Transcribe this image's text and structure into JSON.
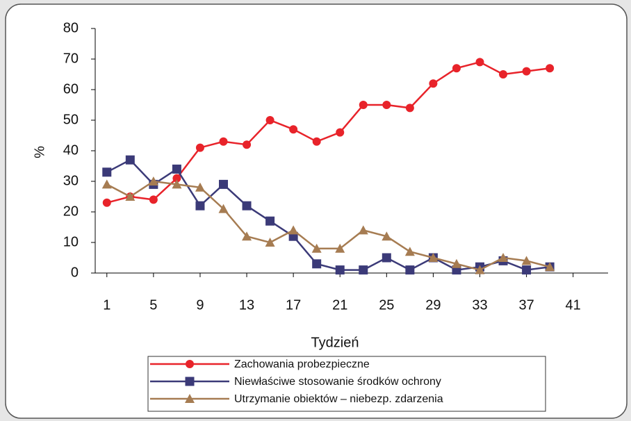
{
  "chart_data": {
    "type": "line",
    "x_label": "Tydzień",
    "y_label": "%",
    "x": [
      1,
      3,
      5,
      7,
      9,
      11,
      13,
      15,
      17,
      19,
      21,
      23,
      25,
      27,
      29,
      31,
      33,
      35,
      37,
      39
    ],
    "series": [
      {
        "name": "Zachowania probezpieczne",
        "color": "#e8232a",
        "marker": "circle",
        "values": [
          23,
          25,
          24,
          31,
          41,
          43,
          42,
          50,
          47,
          43,
          46,
          55,
          55,
          54,
          62,
          67,
          69,
          65,
          66,
          67
        ]
      },
      {
        "name": "Niewłaściwe stosowanie środków ochrony",
        "color": "#3b3a78",
        "marker": "square",
        "values": [
          33,
          37,
          29,
          34,
          22,
          29,
          22,
          17,
          12,
          3,
          1,
          1,
          5,
          1,
          5,
          1,
          2,
          4,
          1,
          2
        ]
      },
      {
        "name": "Utrzymanie obiektów – niebezp. zdarzenia",
        "color": "#a67c52",
        "marker": "triangle",
        "values": [
          29,
          25,
          30,
          29,
          28,
          21,
          12,
          10,
          14,
          8,
          8,
          14,
          12,
          7,
          5,
          3,
          1,
          5,
          4,
          2
        ]
      }
    ],
    "xlim": [
      0,
      44
    ],
    "xticks": [
      1,
      5,
      9,
      13,
      17,
      21,
      25,
      29,
      33,
      37,
      41
    ],
    "ylim": [
      0,
      80
    ],
    "yticks": [
      0,
      10,
      20,
      30,
      40,
      50,
      60,
      70,
      80
    ],
    "legend": "bottom"
  }
}
